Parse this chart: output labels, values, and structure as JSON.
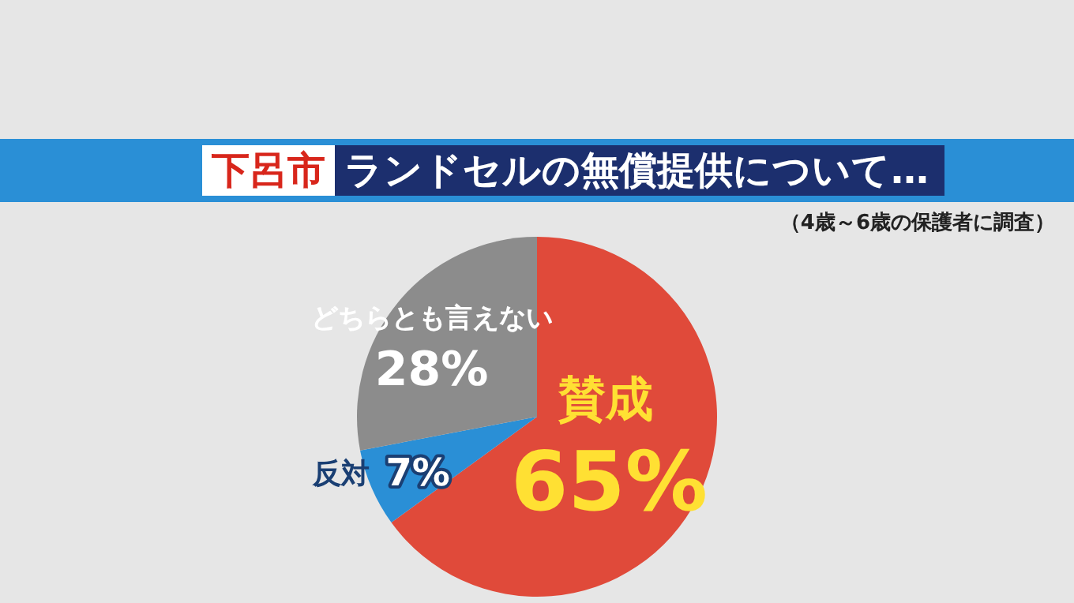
{
  "chart_data": {
    "type": "pie",
    "title": "下呂市 ランドセルの無償提供について…",
    "subtitle": "（4歳～6歳の保護者に調査）",
    "categories": [
      "賛成",
      "反対",
      "どちらとも言えない"
    ],
    "values": [
      65,
      7,
      28
    ],
    "colors": [
      "#e04a3a",
      "#2a8fd6",
      "#8c8c8c"
    ],
    "value_labels": [
      "65%",
      "7%",
      "28%"
    ],
    "legend": false
  }
}
